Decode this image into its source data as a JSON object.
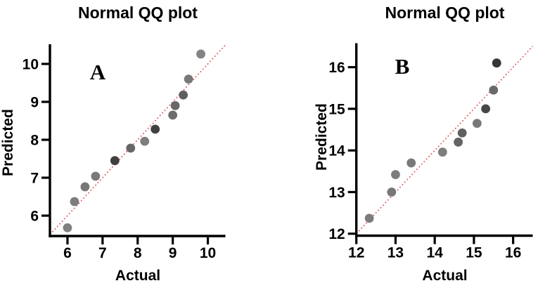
{
  "page": {
    "background": "#ffffff"
  },
  "colors": {
    "axis": "#000000",
    "text": "#000000",
    "reference_line": "#dd5a5e",
    "point_medium": "#7b7b7b",
    "point_dark": "#3e3e3e"
  },
  "chart_data": [
    {
      "id": "A",
      "type": "scatter",
      "title": "Normal QQ plot",
      "panel_label": "A",
      "xlabel": "Actual",
      "ylabel": "Predicted",
      "xlim": [
        5.5,
        10.5
      ],
      "ylim": [
        5.5,
        10.5
      ],
      "x_ticks": [
        6,
        7,
        8,
        9,
        10
      ],
      "y_ticks": [
        6,
        7,
        8,
        9,
        10
      ],
      "grid": false,
      "legend": "none",
      "reference_line": {
        "kind": "identity",
        "from": [
          5.5,
          5.5
        ],
        "to": [
          10.5,
          10.5
        ],
        "color": "#dd5a5e",
        "style": "dotted"
      },
      "points": [
        {
          "x": 6.0,
          "y": 5.68,
          "color": "#818181"
        },
        {
          "x": 6.2,
          "y": 6.37,
          "color": "#7d7d7d"
        },
        {
          "x": 6.5,
          "y": 6.76,
          "color": "#777777"
        },
        {
          "x": 6.8,
          "y": 7.04,
          "color": "#7a7a7a"
        },
        {
          "x": 7.35,
          "y": 7.45,
          "color": "#3f3f3f"
        },
        {
          "x": 7.8,
          "y": 7.78,
          "color": "#666666"
        },
        {
          "x": 8.2,
          "y": 7.96,
          "color": "#7e7e7e"
        },
        {
          "x": 8.5,
          "y": 8.28,
          "color": "#414141"
        },
        {
          "x": 9.0,
          "y": 8.65,
          "color": "#6d6d6d"
        },
        {
          "x": 9.07,
          "y": 8.9,
          "color": "#686868"
        },
        {
          "x": 9.3,
          "y": 9.18,
          "color": "#5e5e5e"
        },
        {
          "x": 9.45,
          "y": 9.6,
          "color": "#787878"
        },
        {
          "x": 9.8,
          "y": 10.26,
          "color": "#838383"
        }
      ]
    },
    {
      "id": "B",
      "type": "scatter",
      "title": "Normal QQ plot",
      "panel_label": "B",
      "xlabel": "Actual",
      "ylabel": "Predicted",
      "xlim": [
        12,
        16.5
      ],
      "ylim": [
        12,
        16.5
      ],
      "x_ticks": [
        12,
        13,
        14,
        15,
        16
      ],
      "y_ticks": [
        12,
        13,
        14,
        15,
        16
      ],
      "grid": false,
      "legend": "none",
      "reference_line": {
        "kind": "identity",
        "from": [
          12,
          12
        ],
        "to": [
          16.5,
          16.5
        ],
        "color": "#dd5a5e",
        "style": "dotted"
      },
      "points": [
        {
          "x": 12.33,
          "y": 12.37,
          "color": "#7c7c7c"
        },
        {
          "x": 12.9,
          "y": 13.0,
          "color": "#787878"
        },
        {
          "x": 13.0,
          "y": 13.42,
          "color": "#7c7c7c"
        },
        {
          "x": 13.4,
          "y": 13.7,
          "color": "#7a7a7a"
        },
        {
          "x": 14.2,
          "y": 13.96,
          "color": "#7d7d7d"
        },
        {
          "x": 14.6,
          "y": 14.2,
          "color": "#646464"
        },
        {
          "x": 14.7,
          "y": 14.42,
          "color": "#606060"
        },
        {
          "x": 15.08,
          "y": 14.65,
          "color": "#787878"
        },
        {
          "x": 15.3,
          "y": 15.0,
          "color": "#474747"
        },
        {
          "x": 15.5,
          "y": 15.45,
          "color": "#696969"
        },
        {
          "x": 15.58,
          "y": 16.1,
          "color": "#363636"
        }
      ]
    }
  ]
}
